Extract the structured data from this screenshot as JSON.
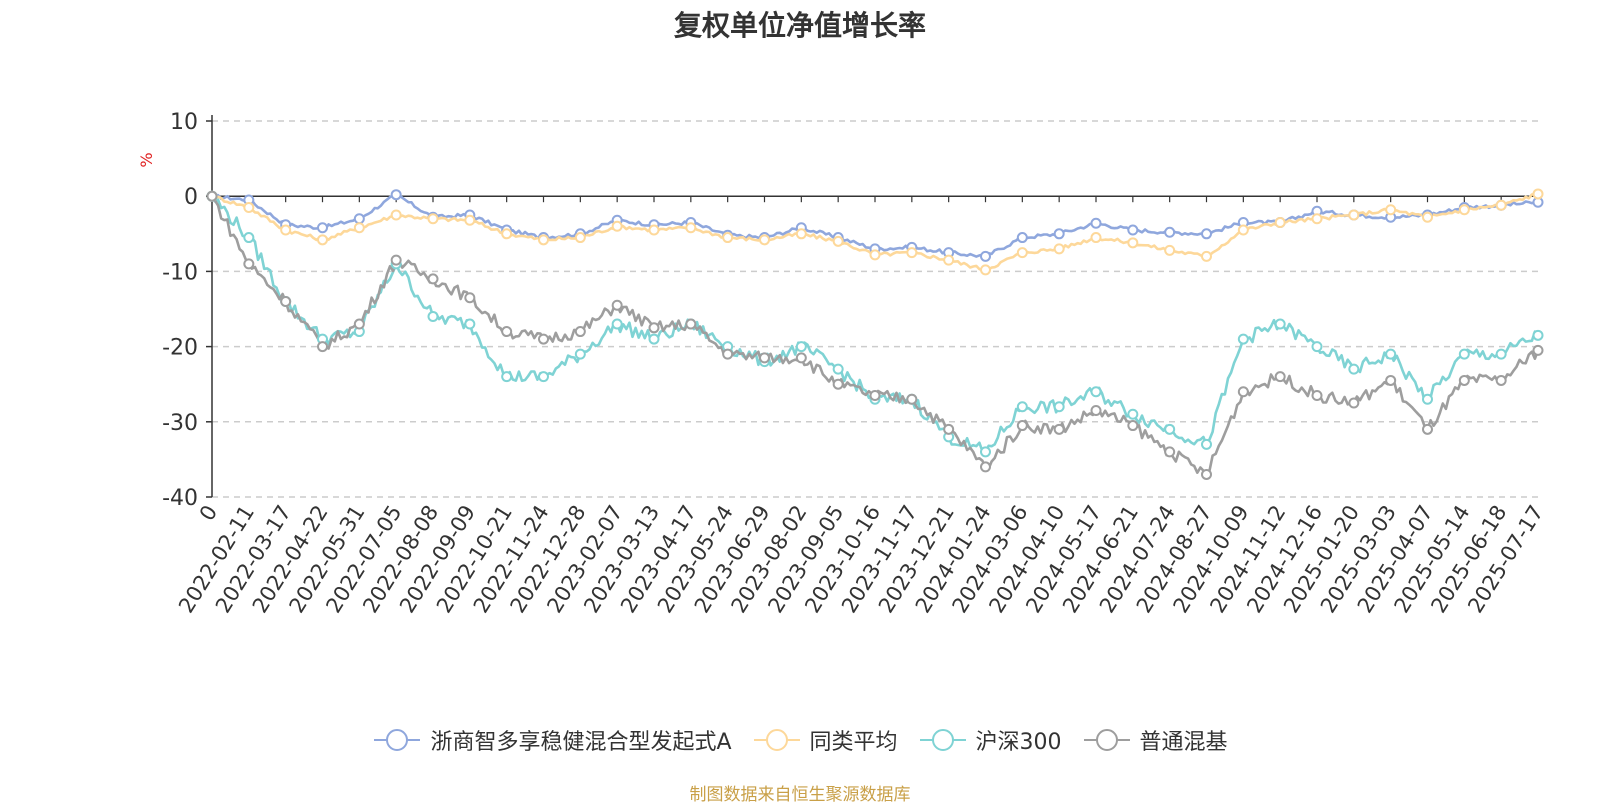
{
  "chart_data": {
    "type": "line",
    "title": "复权单位净值增长率",
    "ylabel": "%",
    "ylim": [
      -40,
      10
    ],
    "yticks": [
      10,
      0,
      -10,
      -20,
      -30,
      -40
    ],
    "grid": true,
    "legend_position": "bottom",
    "x": [
      "0",
      "2022-02-11",
      "2022-03-17",
      "2022-04-22",
      "2022-05-31",
      "2022-07-05",
      "2022-08-08",
      "2022-09-09",
      "2022-10-21",
      "2022-11-24",
      "2022-12-28",
      "2023-02-07",
      "2023-03-13",
      "2023-04-17",
      "2023-05-24",
      "2023-06-29",
      "2023-08-02",
      "2023-09-05",
      "2023-10-16",
      "2023-11-17",
      "2023-12-21",
      "2024-01-24",
      "2024-03-06",
      "2024-04-10",
      "2024-05-17",
      "2024-06-21",
      "2024-07-24",
      "2024-08-27",
      "2024-10-09",
      "2024-11-12",
      "2024-12-16",
      "2025-01-20",
      "2025-03-03",
      "2025-04-07",
      "2025-05-14",
      "2025-06-18",
      "2025-07-17"
    ],
    "series": [
      {
        "name": "浙商智多享稳健混合型发起式A",
        "color": "#8fa7dd",
        "values": [
          0,
          -0.5,
          -3.8,
          -4.2,
          -3.0,
          0.2,
          -2.8,
          -2.5,
          -4.5,
          -5.5,
          -5.0,
          -3.2,
          -3.8,
          -3.5,
          -5.2,
          -5.5,
          -4.2,
          -5.5,
          -7.0,
          -6.8,
          -7.5,
          -8.0,
          -5.5,
          -5.0,
          -3.6,
          -4.5,
          -4.8,
          -5.0,
          -3.5,
          -3.5,
          -2.0,
          -2.5,
          -2.8,
          -2.5,
          -1.5,
          -1.2,
          -0.8
        ]
      },
      {
        "name": "同类平均",
        "color": "#fdd89a",
        "values": [
          0,
          -1.5,
          -4.5,
          -5.8,
          -4.2,
          -2.5,
          -3.0,
          -3.2,
          -5.0,
          -5.8,
          -5.5,
          -4.0,
          -4.5,
          -4.2,
          -5.5,
          -5.8,
          -5.0,
          -6.0,
          -7.8,
          -7.5,
          -8.5,
          -9.8,
          -7.5,
          -7.0,
          -5.5,
          -6.2,
          -7.2,
          -8.0,
          -4.5,
          -3.5,
          -3.0,
          -2.5,
          -1.8,
          -2.8,
          -1.8,
          -1.2,
          0.3
        ]
      },
      {
        "name": "沪深300",
        "color": "#7fd3d4",
        "values": [
          0,
          -5.5,
          -14,
          -19,
          -18,
          -9,
          -16,
          -17,
          -24,
          -24,
          -21,
          -17,
          -19,
          -17,
          -20,
          -22,
          -20,
          -23,
          -27,
          -27,
          -32,
          -34,
          -28,
          -28,
          -26,
          -29,
          -31,
          -33,
          -19,
          -17,
          -20,
          -23,
          -21,
          -27,
          -21,
          -21,
          -18.5
        ]
      },
      {
        "name": "普通混基",
        "color": "#9e9e9e",
        "values": [
          0,
          -9,
          -14,
          -20,
          -17,
          -8.5,
          -11,
          -13.5,
          -18,
          -19,
          -18,
          -14.5,
          -17.5,
          -17,
          -21,
          -21.5,
          -21.5,
          -25,
          -26.5,
          -27,
          -31,
          -36,
          -30.5,
          -31,
          -28.5,
          -30.5,
          -34,
          -37,
          -26,
          -24,
          -26.5,
          -27.5,
          -24.5,
          -31,
          -24.5,
          -24.5,
          -20.5
        ]
      }
    ]
  },
  "source_note": "制图数据来自恒生聚源数据库"
}
